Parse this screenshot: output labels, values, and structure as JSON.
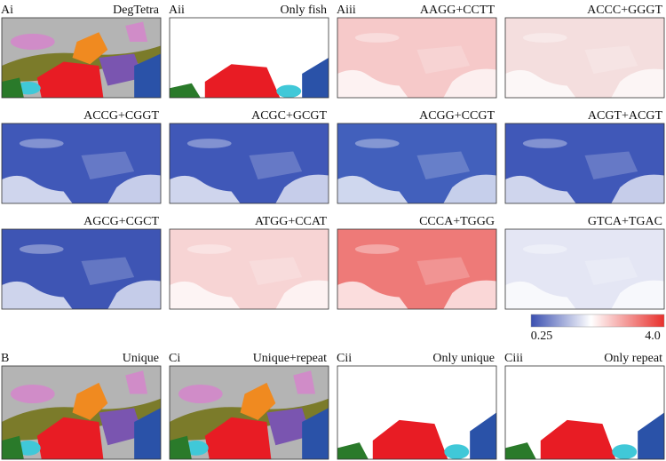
{
  "panels": [
    {
      "label": "Ai",
      "title": "DegTetra"
    },
    {
      "label": "Aii",
      "title": "Only fish"
    },
    {
      "label": "Aiii",
      "title": "AAGG+CCTT"
    },
    {
      "title": "ACCC+GGGT"
    },
    {
      "title": "ACCG+CGGT"
    },
    {
      "title": "ACGC+GCGT"
    },
    {
      "title": "ACGG+CCGT"
    },
    {
      "title": "ACGT+ACGT"
    },
    {
      "title": "AGCG+CGCT"
    },
    {
      "title": "ATGG+CCAT"
    },
    {
      "title": "CCCA+TGGG"
    },
    {
      "title": "GTCA+TGAC"
    },
    {
      "label": "B",
      "title": "Unique"
    },
    {
      "label": "Ci",
      "title": "Unique+repeat"
    },
    {
      "label": "Cii",
      "title": "Only unique"
    },
    {
      "label": "Ciii",
      "title": "Only repeat"
    }
  ],
  "colorbar": {
    "min_label": "0.25",
    "max_label": "4.0"
  }
}
